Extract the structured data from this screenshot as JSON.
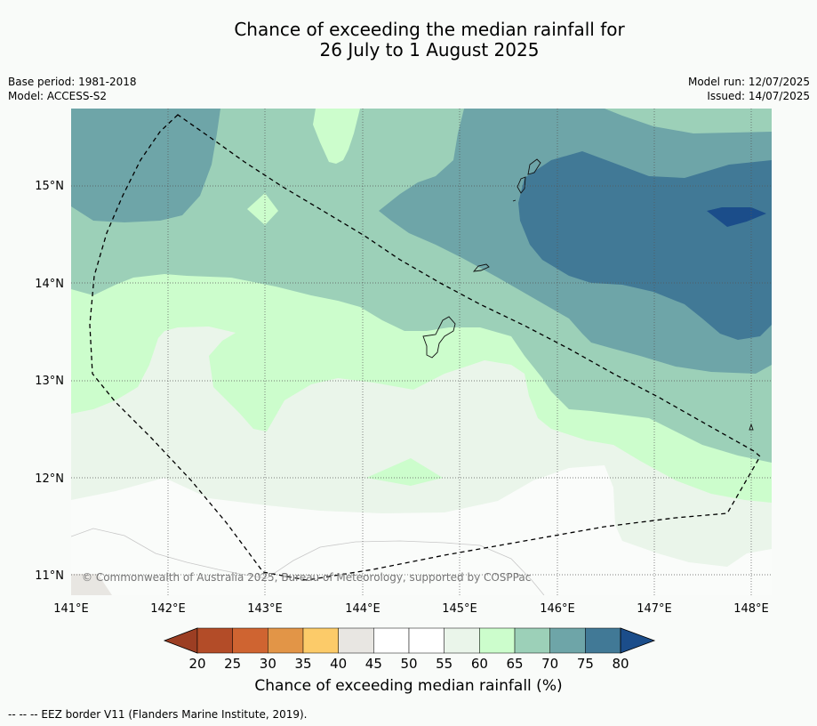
{
  "title_line1": "Chance of exceeding the median rainfall for",
  "title_line2": "26 July to 1 August 2025",
  "base_period": "Base period: 1981-2018",
  "model": "Model: ACCESS-S2",
  "model_run": "Model run: 12/07/2025",
  "issued": "Issued: 14/07/2025",
  "copyright": "© Commonwealth of Australia 2025, Bureau of Meteorology, supported by COSPPac",
  "lat_labels": [
    "15°N",
    "14°N",
    "13°N",
    "12°N",
    "11°N"
  ],
  "lon_labels": [
    "141°E",
    "142°E",
    "143°E",
    "144°E",
    "145°E",
    "146°E",
    "147°E",
    "148°E"
  ],
  "colorbar": {
    "ticks": [
      "20",
      "25",
      "30",
      "35",
      "40",
      "45",
      "50",
      "55",
      "60",
      "65",
      "70",
      "75",
      "80"
    ],
    "colors": [
      "#b34c28",
      "#cf6431",
      "#e29547",
      "#fccb69",
      "#e8e6e2",
      "#ffffff",
      "#ffffff",
      "#eaf5ea",
      "#ccfdcc",
      "#9cd0b8",
      "#6ea5a8",
      "#417996"
    ],
    "under_color": "#9c3e23",
    "over_color": "#1b4d8a",
    "title": "Chance of exceeding median rainfall (%)"
  },
  "footer": "--  --  -- EEZ border V11 (Flanders Marine Institute, 2019)."
}
